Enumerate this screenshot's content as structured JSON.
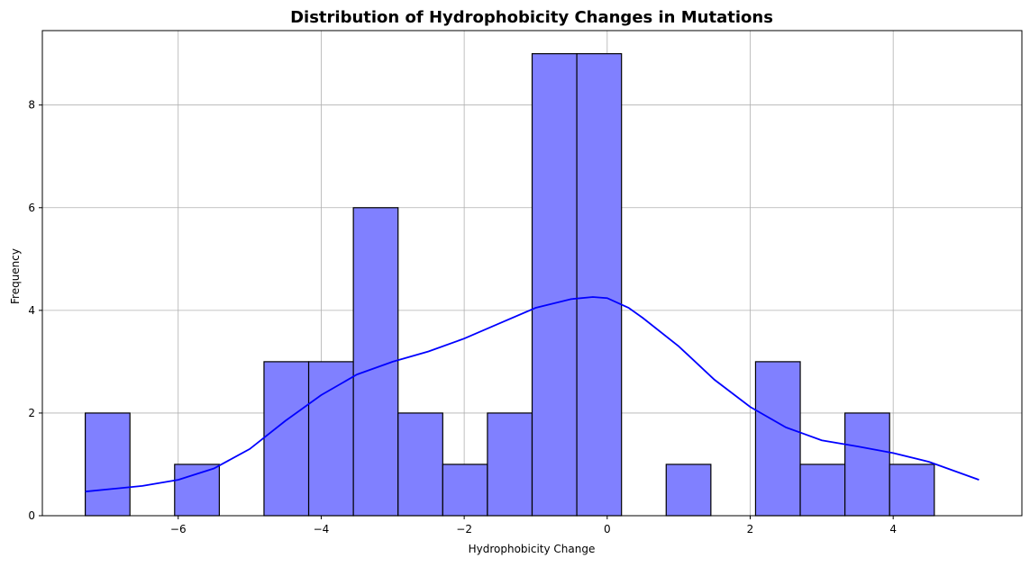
{
  "chart_data": {
    "type": "bar",
    "subtype": "histogram-with-kde",
    "title": "Distribution of Hydrophobicity Changes in Mutations",
    "xlabel": "Hydrophobicity Change",
    "ylabel": "Frequency",
    "xlim": [
      -7.9,
      5.8
    ],
    "ylim": [
      0,
      9.45
    ],
    "xticks": [
      -6,
      -4,
      -2,
      0,
      2,
      4
    ],
    "yticks": [
      0,
      2,
      4,
      6,
      8
    ],
    "xtick_labels": [
      "−6",
      "−4",
      "−2",
      "0",
      "2",
      "4"
    ],
    "ytick_labels": [
      "0",
      "2",
      "4",
      "6",
      "8"
    ],
    "grid": true,
    "bar_color": "#8080ff",
    "bar_edge_color": "#000000",
    "kde_color": "#0000ff",
    "bins": {
      "start": -7.3,
      "width": 0.625,
      "counts": [
        2,
        0,
        1,
        0,
        3,
        3,
        6,
        2,
        1,
        2,
        9,
        9,
        0,
        1,
        0,
        3,
        1,
        2,
        1
      ]
    },
    "kde": {
      "x": [
        -7.3,
        -6.5,
        -6.0,
        -5.5,
        -5.0,
        -4.5,
        -4.0,
        -3.5,
        -3.0,
        -2.5,
        -2.0,
        -1.5,
        -1.0,
        -0.5,
        -0.2,
        0.0,
        0.3,
        0.5,
        1.0,
        1.5,
        2.0,
        2.5,
        3.0,
        3.5,
        4.0,
        4.5,
        5.2
      ],
      "y": [
        0.47,
        0.58,
        0.7,
        0.92,
        1.3,
        1.85,
        2.35,
        2.75,
        3.0,
        3.2,
        3.45,
        3.75,
        4.05,
        4.22,
        4.26,
        4.24,
        4.05,
        3.85,
        3.3,
        2.65,
        2.12,
        1.72,
        1.47,
        1.35,
        1.22,
        1.05,
        0.7
      ]
    }
  }
}
